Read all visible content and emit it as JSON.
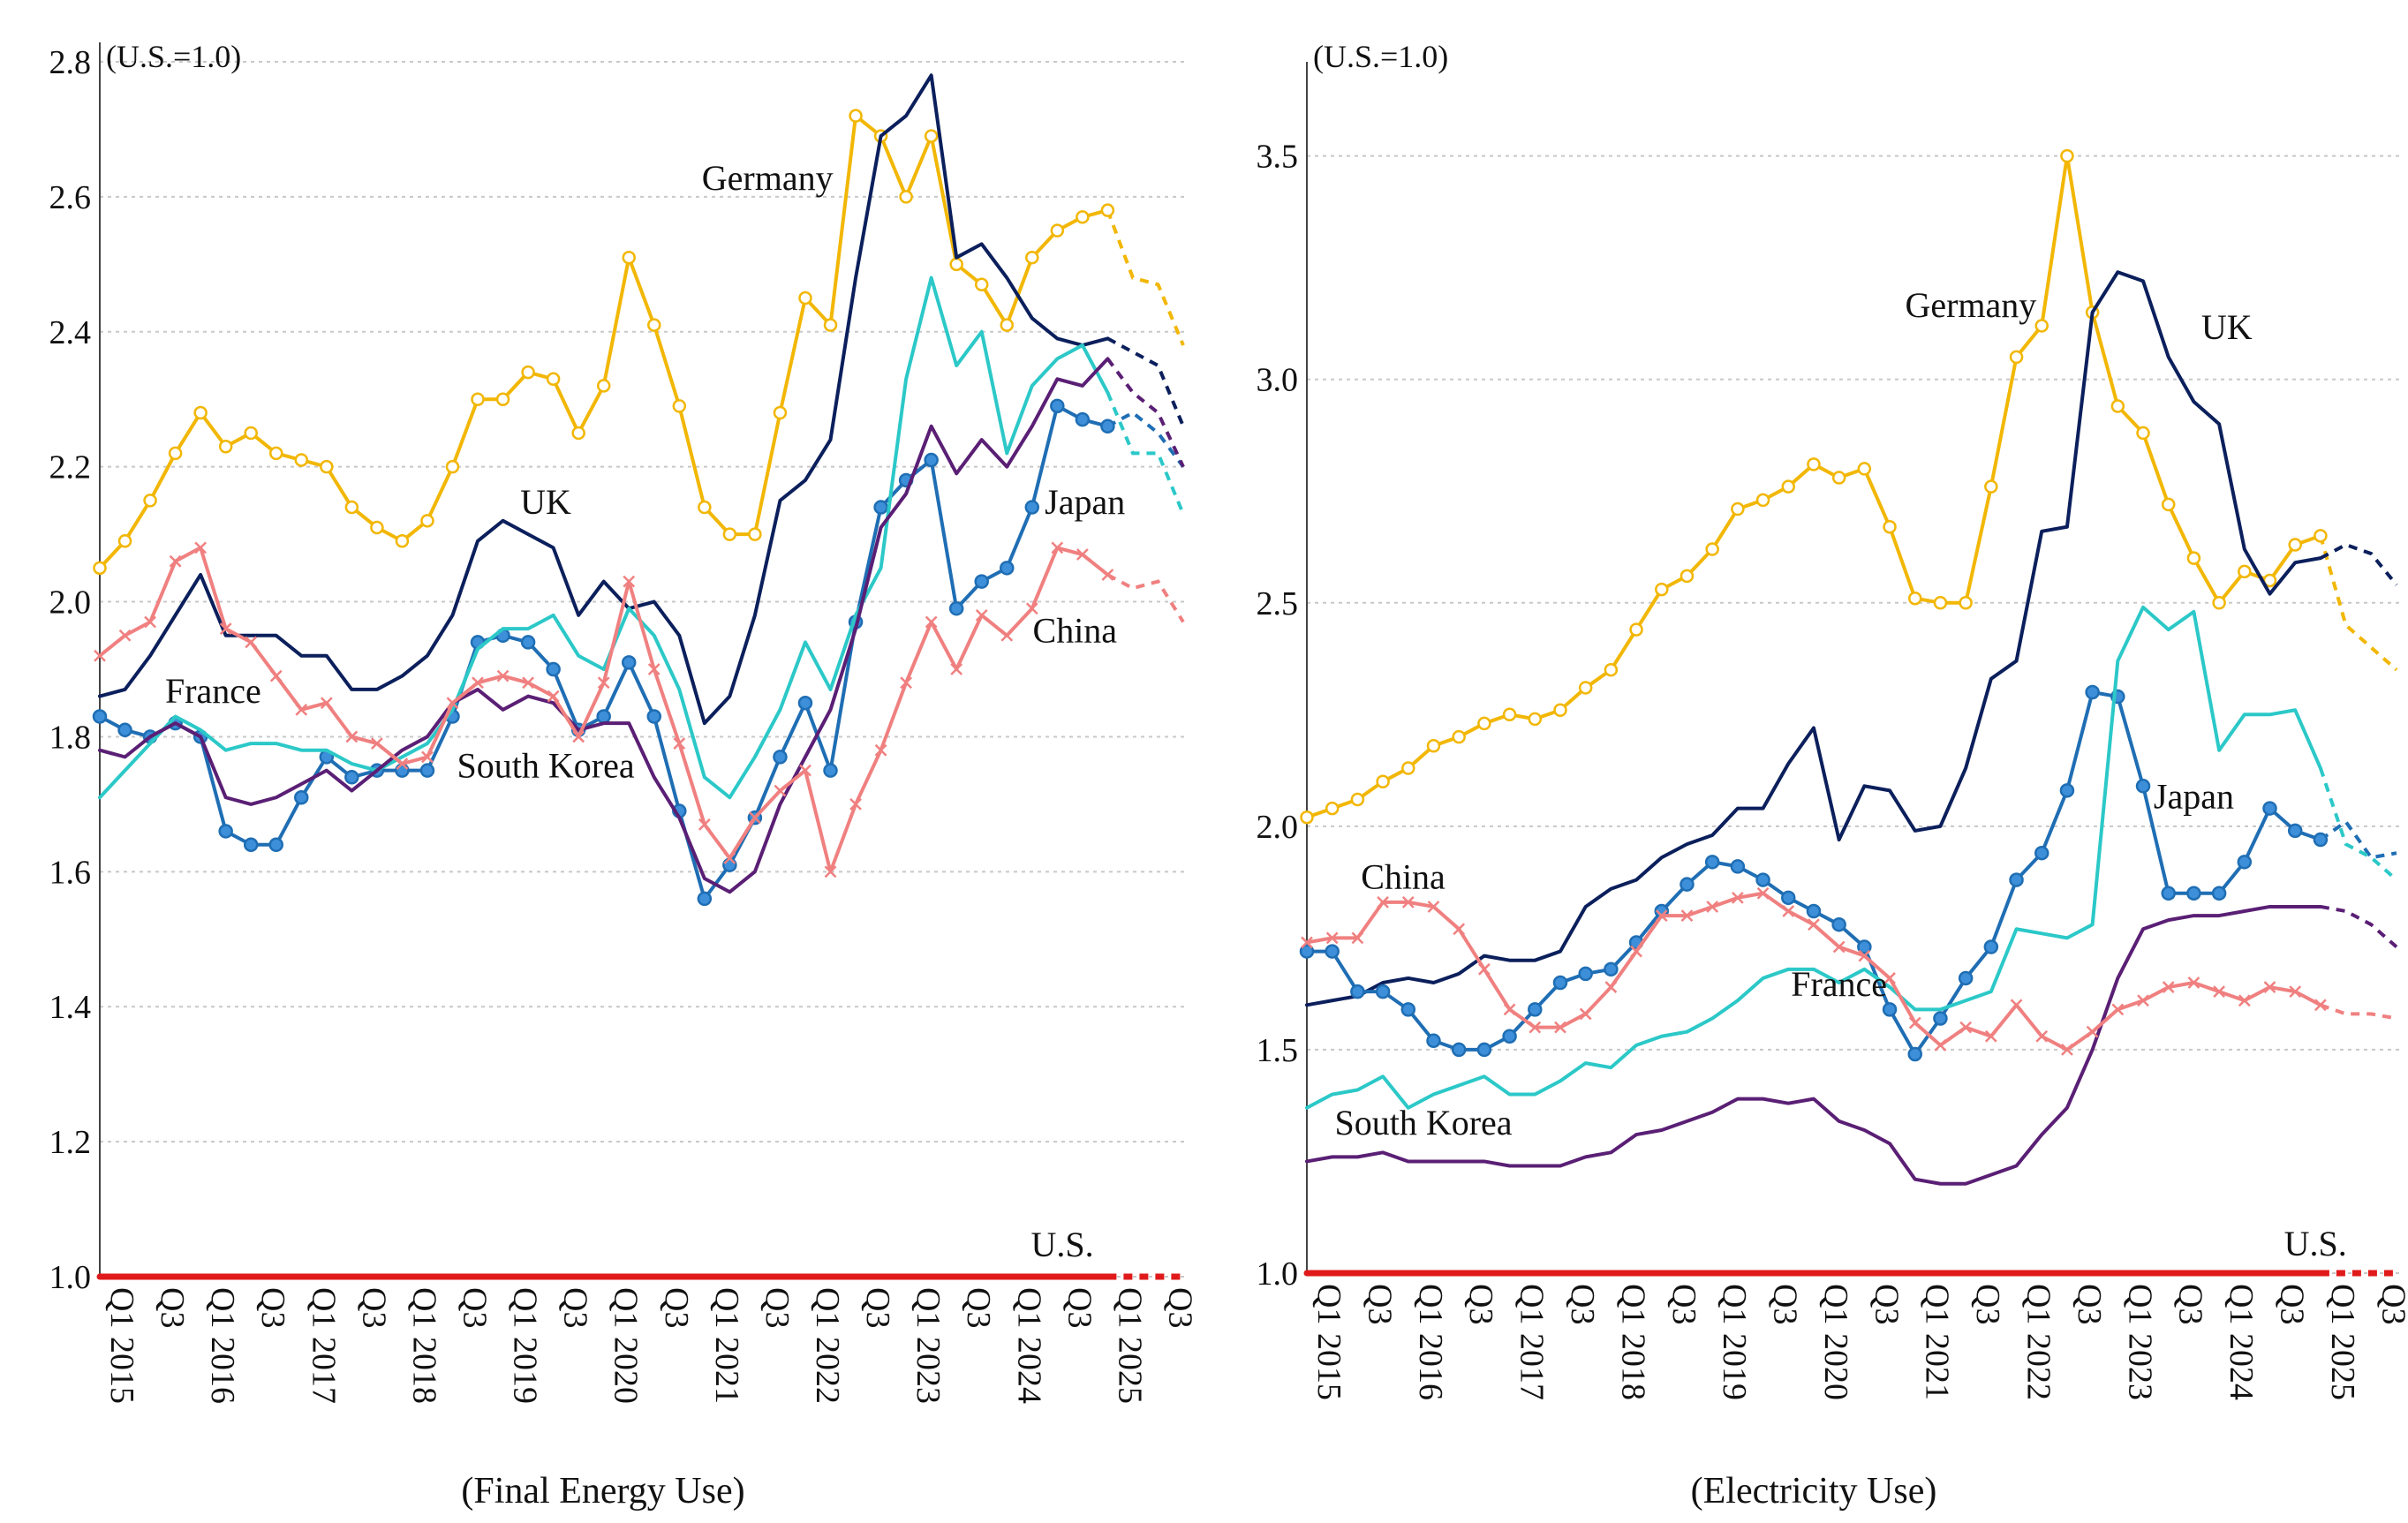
{
  "chart_data": [
    {
      "type": "line",
      "title": "",
      "xlabel": "(Final Energy Use)",
      "unit_label": "(U.S.=1.0)",
      "ylim": [
        1.0,
        2.8
      ],
      "yticks": [
        "1.0",
        "1.2",
        "1.4",
        "1.6",
        "1.8",
        "2.0",
        "2.2",
        "2.4",
        "2.6",
        "2.8"
      ],
      "ytick_values": [
        1.0,
        1.2,
        1.4,
        1.6,
        1.8,
        2.0,
        2.2,
        2.4,
        2.6,
        2.8
      ],
      "x_tick_labels": [
        "Q1 2015",
        "Q3",
        "Q1 2016",
        "Q3",
        "Q1 2017",
        "Q3",
        "Q1 2018",
        "Q3",
        "Q1 2019",
        "Q3",
        "Q1 2020",
        "Q3",
        "Q1 2021",
        "Q3",
        "Q1 2022",
        "Q3",
        "Q1 2023",
        "Q3",
        "Q1 2024",
        "Q3",
        "Q1 2025",
        "Q3"
      ],
      "x_tick_indices": [
        0,
        2,
        4,
        6,
        8,
        10,
        12,
        14,
        16,
        18,
        20,
        22,
        24,
        26,
        28,
        30,
        32,
        34,
        36,
        38,
        40,
        42
      ],
      "n_periods": 44,
      "forecast_from_index": 40,
      "grid": true,
      "series": [
        {
          "name": "Germany",
          "color": "#F2B705",
          "marker": "open-circle",
          "values": [
            2.05,
            2.09,
            2.15,
            2.22,
            2.28,
            2.23,
            2.25,
            2.22,
            2.21,
            2.2,
            2.14,
            2.11,
            2.09,
            2.12,
            2.2,
            2.3,
            2.3,
            2.34,
            2.33,
            2.25,
            2.32,
            2.51,
            2.41,
            2.29,
            2.14,
            2.1,
            2.1,
            2.28,
            2.45,
            2.41,
            2.72,
            2.69,
            2.6,
            2.69,
            2.5,
            2.47,
            2.41,
            2.51,
            2.55,
            2.57,
            2.58,
            2.48,
            2.47,
            2.38
          ]
        },
        {
          "name": "UK",
          "color": "#0B1F5C",
          "marker": "none",
          "values": [
            1.86,
            1.87,
            1.92,
            1.98,
            2.04,
            1.95,
            1.95,
            1.95,
            1.92,
            1.92,
            1.87,
            1.87,
            1.89,
            1.92,
            1.98,
            2.09,
            2.12,
            2.1,
            2.08,
            1.98,
            2.03,
            1.99,
            2.0,
            1.95,
            1.82,
            1.86,
            1.98,
            2.15,
            2.18,
            2.24,
            2.48,
            2.69,
            2.72,
            2.78,
            2.51,
            2.53,
            2.48,
            2.42,
            2.39,
            2.38,
            2.39,
            2.37,
            2.35,
            2.26
          ]
        },
        {
          "name": "Japan",
          "color": "#1F6EB4",
          "marker": "filled-circle",
          "values": [
            1.83,
            1.81,
            1.8,
            1.82,
            1.8,
            1.66,
            1.64,
            1.64,
            1.71,
            1.77,
            1.74,
            1.75,
            1.75,
            1.75,
            1.83,
            1.94,
            1.95,
            1.94,
            1.9,
            1.81,
            1.83,
            1.91,
            1.83,
            1.69,
            1.56,
            1.61,
            1.68,
            1.77,
            1.85,
            1.75,
            1.97,
            2.14,
            2.18,
            2.21,
            1.99,
            2.03,
            2.05,
            2.14,
            2.29,
            2.27,
            2.26,
            2.28,
            2.25,
            2.2
          ]
        },
        {
          "name": "France",
          "color": "#2CC8C8",
          "marker": "none",
          "values": [
            1.71,
            1.75,
            1.79,
            1.83,
            1.81,
            1.78,
            1.79,
            1.79,
            1.78,
            1.78,
            1.76,
            1.75,
            1.77,
            1.79,
            1.84,
            1.93,
            1.96,
            1.96,
            1.98,
            1.92,
            1.9,
            1.99,
            1.95,
            1.87,
            1.74,
            1.71,
            1.77,
            1.84,
            1.94,
            1.87,
            1.98,
            2.05,
            2.33,
            2.48,
            2.35,
            2.4,
            2.22,
            2.32,
            2.36,
            2.38,
            2.31,
            2.22,
            2.22,
            2.13
          ]
        },
        {
          "name": "South Korea",
          "color": "#5A1F75",
          "marker": "none",
          "values": [
            1.78,
            1.77,
            1.8,
            1.82,
            1.8,
            1.71,
            1.7,
            1.71,
            1.73,
            1.75,
            1.72,
            1.75,
            1.78,
            1.8,
            1.85,
            1.87,
            1.84,
            1.86,
            1.85,
            1.81,
            1.82,
            1.82,
            1.74,
            1.68,
            1.59,
            1.57,
            1.6,
            1.7,
            1.77,
            1.84,
            1.96,
            2.11,
            2.16,
            2.26,
            2.19,
            2.24,
            2.2,
            2.26,
            2.33,
            2.32,
            2.36,
            2.31,
            2.28,
            2.2
          ]
        },
        {
          "name": "China",
          "color": "#F08080",
          "marker": "cross",
          "values": [
            1.92,
            1.95,
            1.97,
            2.06,
            2.08,
            1.96,
            1.94,
            1.89,
            1.84,
            1.85,
            1.8,
            1.79,
            1.76,
            1.77,
            1.85,
            1.88,
            1.89,
            1.88,
            1.86,
            1.8,
            1.88,
            2.03,
            1.9,
            1.79,
            1.67,
            1.62,
            1.68,
            1.72,
            1.75,
            1.6,
            1.7,
            1.78,
            1.88,
            1.97,
            1.9,
            1.98,
            1.95,
            1.99,
            2.08,
            2.07,
            2.04,
            2.02,
            2.03,
            1.97
          ]
        },
        {
          "name": "U.S.",
          "color": "#E01A1A",
          "marker": "none",
          "values": [
            1.0,
            1.0,
            1.0,
            1.0,
            1.0,
            1.0,
            1.0,
            1.0,
            1.0,
            1.0,
            1.0,
            1.0,
            1.0,
            1.0,
            1.0,
            1.0,
            1.0,
            1.0,
            1.0,
            1.0,
            1.0,
            1.0,
            1.0,
            1.0,
            1.0,
            1.0,
            1.0,
            1.0,
            1.0,
            1.0,
            1.0,
            1.0,
            1.0,
            1.0,
            1.0,
            1.0,
            1.0,
            1.0,
            1.0,
            1.0,
            1.0,
            1.0,
            1.0,
            1.0
          ]
        }
      ],
      "annotations": [
        {
          "text": "Germany",
          "series": "Germany",
          "x": 26.5,
          "y": 2.61
        },
        {
          "text": "UK",
          "series": "UK",
          "x": 17.7,
          "y": 2.13
        },
        {
          "text": "Japan",
          "series": "Japan",
          "x": 39.1,
          "y": 2.13
        },
        {
          "text": "China",
          "series": "China",
          "x": 38.7,
          "y": 1.94
        },
        {
          "text": "France",
          "series": "France",
          "x": 4.5,
          "y": 1.85
        },
        {
          "text": "South Korea",
          "series": "South Korea",
          "x": 17.7,
          "y": 1.74
        },
        {
          "text": "U.S.",
          "series": "U.S.",
          "x": 38.2,
          "y": 1.03
        }
      ]
    },
    {
      "type": "line",
      "title": "",
      "xlabel": "(Electricity Use)",
      "unit_label": "(U.S.=1.0)",
      "ylim": [
        1.0,
        3.6
      ],
      "yticks": [
        "1.0",
        "1.5",
        "2.0",
        "2.5",
        "3.0",
        "3.5"
      ],
      "ytick_values": [
        1.0,
        1.5,
        2.0,
        2.5,
        3.0,
        3.5
      ],
      "x_tick_labels": [
        "Q1 2015",
        "Q3",
        "Q1 2016",
        "Q3",
        "Q1 2017",
        "Q3",
        "Q1 2018",
        "Q3",
        "Q1 2019",
        "Q3",
        "Q1 2020",
        "Q3",
        "Q1 2021",
        "Q3",
        "Q1 2022",
        "Q3",
        "Q1 2023",
        "Q3",
        "Q1 2024",
        "Q3",
        "Q1 2025",
        "Q3"
      ],
      "x_tick_indices": [
        0,
        2,
        4,
        6,
        8,
        10,
        12,
        14,
        16,
        18,
        20,
        22,
        24,
        26,
        28,
        30,
        32,
        34,
        36,
        38,
        40,
        42
      ],
      "n_periods": 44,
      "forecast_from_index": 40,
      "grid": true,
      "series": [
        {
          "name": "Germany",
          "color": "#F2B705",
          "marker": "open-circle",
          "values": [
            2.02,
            2.04,
            2.06,
            2.1,
            2.13,
            2.18,
            2.2,
            2.23,
            2.25,
            2.24,
            2.26,
            2.31,
            2.35,
            2.44,
            2.53,
            2.56,
            2.62,
            2.71,
            2.73,
            2.76,
            2.81,
            2.78,
            2.8,
            2.67,
            2.51,
            2.5,
            2.5,
            2.76,
            3.05,
            3.12,
            3.5,
            3.15,
            2.94,
            2.88,
            2.72,
            2.6,
            2.5,
            2.57,
            2.55,
            2.63,
            2.65,
            2.45,
            2.4,
            2.35
          ]
        },
        {
          "name": "UK",
          "color": "#0B1F5C",
          "marker": "none",
          "values": [
            1.6,
            1.61,
            1.62,
            1.65,
            1.66,
            1.65,
            1.67,
            1.71,
            1.7,
            1.7,
            1.72,
            1.82,
            1.86,
            1.88,
            1.93,
            1.96,
            1.98,
            2.04,
            2.04,
            2.14,
            2.22,
            1.97,
            2.09,
            2.08,
            1.99,
            2.0,
            2.13,
            2.33,
            2.37,
            2.66,
            2.67,
            3.15,
            3.24,
            3.22,
            3.05,
            2.95,
            2.9,
            2.62,
            2.52,
            2.59,
            2.6,
            2.63,
            2.61,
            2.54
          ]
        },
        {
          "name": "Japan",
          "color": "#1F6EB4",
          "marker": "filled-circle",
          "values": [
            1.72,
            1.72,
            1.63,
            1.63,
            1.59,
            1.52,
            1.5,
            1.5,
            1.53,
            1.59,
            1.65,
            1.67,
            1.68,
            1.74,
            1.81,
            1.87,
            1.92,
            1.91,
            1.88,
            1.84,
            1.81,
            1.78,
            1.73,
            1.59,
            1.49,
            1.57,
            1.66,
            1.73,
            1.88,
            1.94,
            2.08,
            2.3,
            2.29,
            2.09,
            1.85,
            1.85,
            1.85,
            1.92,
            2.04,
            1.99,
            1.97,
            2.01,
            1.93,
            1.94
          ]
        },
        {
          "name": "France",
          "color": "#2CC8C8",
          "marker": "none",
          "values": [
            1.37,
            1.4,
            1.41,
            1.44,
            1.37,
            1.4,
            1.42,
            1.44,
            1.4,
            1.4,
            1.43,
            1.47,
            1.46,
            1.51,
            1.53,
            1.54,
            1.57,
            1.61,
            1.66,
            1.68,
            1.68,
            1.65,
            1.68,
            1.64,
            1.59,
            1.59,
            1.61,
            1.63,
            1.77,
            1.76,
            1.75,
            1.78,
            2.37,
            2.49,
            2.44,
            2.48,
            2.17,
            2.25,
            2.25,
            2.26,
            2.13,
            1.96,
            1.93,
            1.88
          ]
        },
        {
          "name": "South Korea",
          "color": "#5A1F75",
          "marker": "none",
          "values": [
            1.25,
            1.26,
            1.26,
            1.27,
            1.25,
            1.25,
            1.25,
            1.25,
            1.24,
            1.24,
            1.24,
            1.26,
            1.27,
            1.31,
            1.32,
            1.34,
            1.36,
            1.39,
            1.39,
            1.38,
            1.39,
            1.34,
            1.32,
            1.29,
            1.21,
            1.2,
            1.2,
            1.22,
            1.24,
            1.31,
            1.37,
            1.5,
            1.66,
            1.77,
            1.79,
            1.8,
            1.8,
            1.81,
            1.82,
            1.82,
            1.82,
            1.81,
            1.78,
            1.73
          ]
        },
        {
          "name": "China",
          "color": "#F08080",
          "marker": "cross",
          "values": [
            1.74,
            1.75,
            1.75,
            1.83,
            1.83,
            1.82,
            1.77,
            1.68,
            1.59,
            1.55,
            1.55,
            1.58,
            1.64,
            1.72,
            1.8,
            1.8,
            1.82,
            1.84,
            1.85,
            1.81,
            1.78,
            1.73,
            1.71,
            1.66,
            1.56,
            1.51,
            1.55,
            1.53,
            1.6,
            1.53,
            1.5,
            1.54,
            1.59,
            1.61,
            1.64,
            1.65,
            1.63,
            1.61,
            1.64,
            1.63,
            1.6,
            1.58,
            1.58,
            1.57
          ]
        },
        {
          "name": "U.S.",
          "color": "#E01A1A",
          "marker": "none",
          "values": [
            1.0,
            1.0,
            1.0,
            1.0,
            1.0,
            1.0,
            1.0,
            1.0,
            1.0,
            1.0,
            1.0,
            1.0,
            1.0,
            1.0,
            1.0,
            1.0,
            1.0,
            1.0,
            1.0,
            1.0,
            1.0,
            1.0,
            1.0,
            1.0,
            1.0,
            1.0,
            1.0,
            1.0,
            1.0,
            1.0,
            1.0,
            1.0,
            1.0,
            1.0,
            1.0,
            1.0,
            1.0,
            1.0,
            1.0,
            1.0,
            1.0,
            1.0,
            1.0,
            1.0
          ]
        }
      ],
      "annotations": [
        {
          "text": "Germany",
          "series": "Germany",
          "x": 26.2,
          "y": 3.14
        },
        {
          "text": "UK",
          "series": "UK",
          "x": 36.3,
          "y": 3.09
        },
        {
          "text": "Japan",
          "series": "Japan",
          "x": 35.0,
          "y": 2.04
        },
        {
          "text": "China",
          "series": "China",
          "x": 3.8,
          "y": 1.86
        },
        {
          "text": "France",
          "series": "France",
          "x": 21.0,
          "y": 1.62
        },
        {
          "text": "South Korea",
          "series": "South Korea",
          "x": 4.6,
          "y": 1.31
        },
        {
          "text": "U.S.",
          "series": "U.S.",
          "x": 39.8,
          "y": 1.04
        }
      ]
    }
  ]
}
